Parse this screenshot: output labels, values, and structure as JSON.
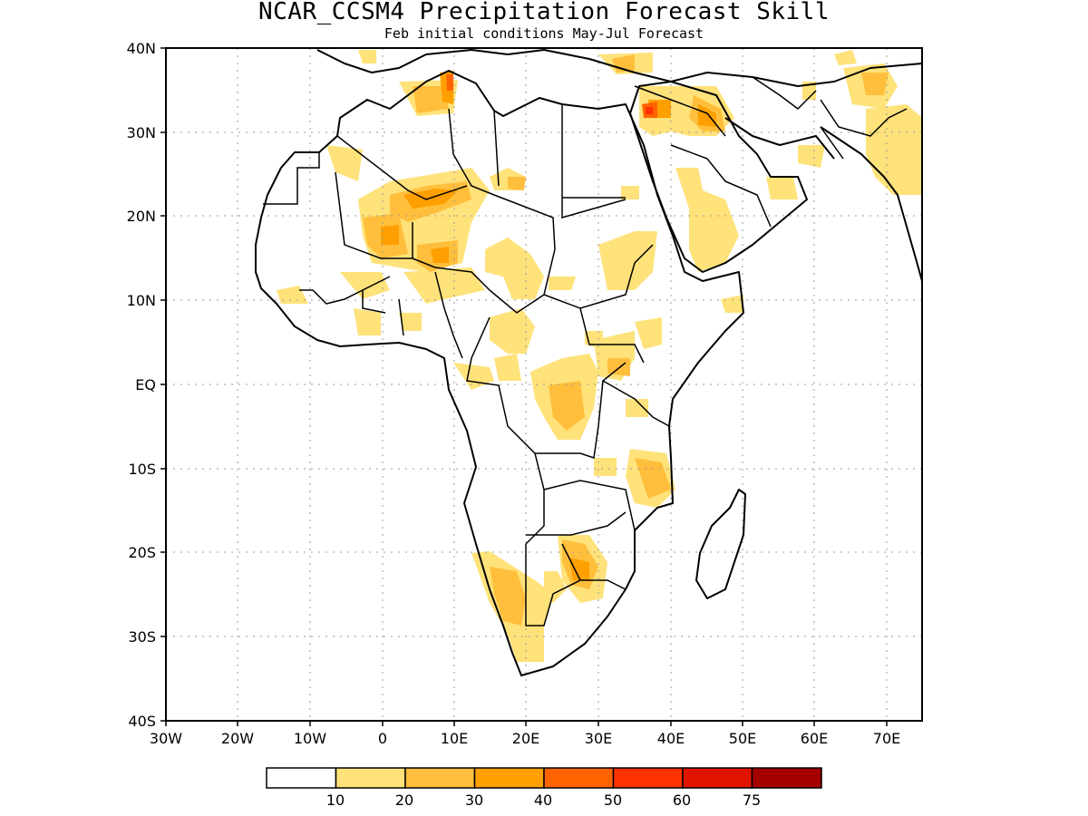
{
  "title": "NCAR_CCSM4 Precipitation Forecast Skill",
  "subtitle": "Feb initial conditions  May-Jul Forecast",
  "map": {
    "region": "Africa and Middle East",
    "lon_range": [
      -30,
      75
    ],
    "lat_range": [
      -40,
      40
    ],
    "grid": true,
    "lon_ticks": [
      "30W",
      "20W",
      "10W",
      "0",
      "10E",
      "20E",
      "30E",
      "40E",
      "50E",
      "60E",
      "70E"
    ],
    "lat_ticks": [
      "40N",
      "30N",
      "20N",
      "10N",
      "EQ",
      "10S",
      "20S",
      "30S",
      "40S"
    ]
  },
  "legend": {
    "colors": [
      "#ffffff",
      "#ffe27a",
      "#ffbf3c",
      "#ff9f00",
      "#ff6400",
      "#ff3200",
      "#e11400",
      "#a50000"
    ],
    "labels": [
      "10",
      "20",
      "30",
      "40",
      "50",
      "60",
      "75"
    ]
  }
}
